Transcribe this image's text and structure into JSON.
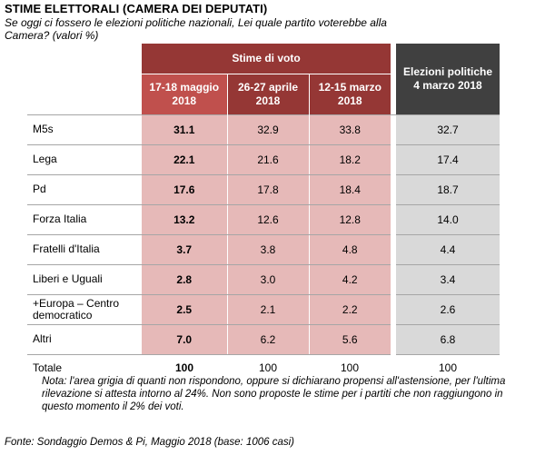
{
  "title": "STIME ELETTORALI  (CAMERA  DEI DEPUTATI)",
  "question": "Se oggi ci fossero le elezioni politiche nazionali,  Lei quale partito voterebbe alla Camera?  (valori %)",
  "chart_data": {
    "type": "table",
    "group_header": "Stime di voto",
    "columns": [
      "17-18 maggio 2018",
      "26-27 aprile 2018",
      "12-15 marzo 2018",
      "Elezioni politiche 4 marzo 2018"
    ],
    "rows": [
      {
        "label": "M5s",
        "values": [
          "31.1",
          "32.9",
          "33.8",
          "32.7"
        ]
      },
      {
        "label": "Lega",
        "values": [
          "22.1",
          "21.6",
          "18.2",
          "17.4"
        ]
      },
      {
        "label": "Pd",
        "values": [
          "17.6",
          "17.8",
          "18.4",
          "18.7"
        ]
      },
      {
        "label": "Forza Italia",
        "values": [
          "13.2",
          "12.6",
          "12.8",
          "14.0"
        ]
      },
      {
        "label": "Fratelli d'Italia",
        "values": [
          "3.7",
          "3.8",
          "4.8",
          "4.4"
        ]
      },
      {
        "label": "Liberi e Uguali",
        "values": [
          "2.8",
          "3.0",
          "4.2",
          "3.4"
        ]
      },
      {
        "label": "+Europa – Centro democratico",
        "values": [
          "2.5",
          "2.1",
          "2.2",
          "2.6"
        ]
      },
      {
        "label": "Altri",
        "values": [
          "7.0",
          "6.2",
          "5.6",
          "6.8"
        ]
      }
    ],
    "total": {
      "label": "Totale",
      "values": [
        "100",
        "100",
        "100",
        "100"
      ]
    }
  },
  "colors": {
    "header_current": "#c0504d",
    "header_group": "#953735",
    "header_elections": "#404040",
    "cell_pink": "#e6b9b8",
    "cell_grey": "#d9d9d9"
  },
  "note": "Nota: l'area grigia di quanti non rispondono, oppure si dichiarano propensi all'astensione, per l'ultima rilevazione si attesta intorno al 24%. Non sono proposte le stime per i partiti che non raggiungono in questo momento il 2% dei voti.",
  "source": "Fonte: Sondaggio Demos & Pi, Maggio 2018 (base: 1006 casi)"
}
